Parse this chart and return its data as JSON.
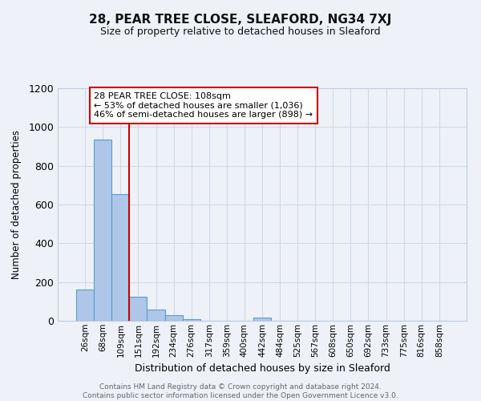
{
  "title1": "28, PEAR TREE CLOSE, SLEAFORD, NG34 7XJ",
  "title2": "Size of property relative to detached houses in Sleaford",
  "xlabel": "Distribution of detached houses by size in Sleaford",
  "ylabel": "Number of detached properties",
  "bin_labels": [
    "26sqm",
    "68sqm",
    "109sqm",
    "151sqm",
    "192sqm",
    "234sqm",
    "276sqm",
    "317sqm",
    "359sqm",
    "400sqm",
    "442sqm",
    "484sqm",
    "525sqm",
    "567sqm",
    "608sqm",
    "650sqm",
    "692sqm",
    "733sqm",
    "775sqm",
    "816sqm",
    "858sqm"
  ],
  "bar_values": [
    160,
    935,
    655,
    125,
    58,
    27,
    10,
    0,
    0,
    0,
    15,
    0,
    0,
    0,
    0,
    0,
    0,
    0,
    0,
    0,
    0
  ],
  "bar_color": "#aec6e8",
  "bar_edge_color": "#5b9bd5",
  "grid_color": "#d0d8e8",
  "vline_color": "#cc0000",
  "annotation_line1": "28 PEAR TREE CLOSE: 108sqm",
  "annotation_line2": "← 53% of detached houses are smaller (1,036)",
  "annotation_line3": "46% of semi-detached houses are larger (898) →",
  "annotation_box_color": "#ffffff",
  "annotation_box_edge": "#cc0000",
  "ylim": [
    0,
    1200
  ],
  "yticks": [
    0,
    200,
    400,
    600,
    800,
    1000,
    1200
  ],
  "footer_text": "Contains HM Land Registry data © Crown copyright and database right 2024.\nContains public sector information licensed under the Open Government Licence v3.0.",
  "bg_color": "#eef2f8",
  "title_fontsize": 11,
  "subtitle_fontsize": 9
}
